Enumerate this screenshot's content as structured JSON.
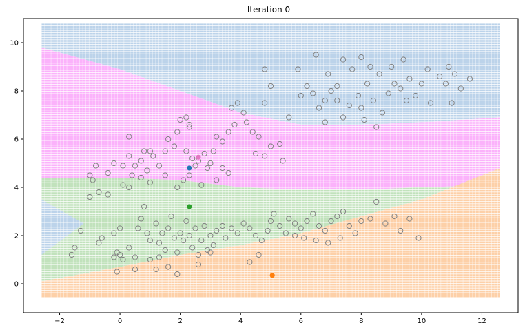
{
  "chart_data": {
    "type": "scatter",
    "title": "Iteration 0",
    "xlabel": "",
    "ylabel": "",
    "xlim": [
      -3.2,
      13.2
    ],
    "ylim": [
      -1.2,
      11.0
    ],
    "xticks": [
      -2,
      0,
      2,
      4,
      6,
      8,
      10,
      12
    ],
    "yticks": [
      0,
      2,
      4,
      6,
      8,
      10
    ],
    "grid": false,
    "legend": "none",
    "region_extent": {
      "x": [
        -2.6,
        12.6
      ],
      "y": [
        -0.6,
        10.8
      ]
    },
    "regions": [
      {
        "name": "blue",
        "color": "#bcd3ea"
      },
      {
        "name": "magenta",
        "color": "#fbb2fb"
      },
      {
        "name": "green",
        "color": "#c1e2bc"
      },
      {
        "name": "orange",
        "color": "#fdd0a8"
      }
    ],
    "boundaries": {
      "x": [
        -2.6,
        0,
        2,
        4,
        6,
        8,
        10,
        12.6
      ],
      "blue_magenta": [
        9.8,
        8.9,
        8.0,
        7.1,
        6.6,
        6.6,
        6.7,
        6.9
      ],
      "magenta_green": [
        4.4,
        4.4,
        4.3,
        4.0,
        3.9,
        3.9,
        4.0,
        4.1
      ],
      "green_orange": [
        0.1,
        0.7,
        1.2,
        1.6,
        2.1,
        2.8,
        3.5,
        4.8
      ],
      "left_blue_wedge": {
        "x": [
          -2.6,
          -1.2,
          -2.6
        ],
        "y": [
          1.2,
          2.5,
          3.5
        ]
      }
    },
    "centroids": [
      {
        "x": 2.3,
        "y": 4.8,
        "color": "#1f77b4"
      },
      {
        "x": 2.6,
        "y": 5.25,
        "color": "#e377c2"
      },
      {
        "x": 2.3,
        "y": 3.2,
        "color": "#2ca02c"
      },
      {
        "x": 5.05,
        "y": 0.35,
        "color": "#ff7f0e"
      }
    ],
    "point_color": "#808080",
    "points": [
      [
        -1.6,
        1.2
      ],
      [
        -1.5,
        1.5
      ],
      [
        -1.3,
        2.2
      ],
      [
        -1.0,
        4.5
      ],
      [
        -0.8,
        4.9
      ],
      [
        -0.9,
        4.3
      ],
      [
        -1.0,
        3.6
      ],
      [
        -0.7,
        3.8
      ],
      [
        -0.4,
        3.7
      ],
      [
        -0.4,
        4.6
      ],
      [
        -0.2,
        5.0
      ],
      [
        0.1,
        4.1
      ],
      [
        -0.7,
        1.7
      ],
      [
        -0.6,
        1.9
      ],
      [
        -0.2,
        1.1
      ],
      [
        0.0,
        1.2
      ],
      [
        0.1,
        1.0
      ],
      [
        -0.1,
        1.3
      ],
      [
        -0.2,
        2.1
      ],
      [
        0.0,
        2.3
      ],
      [
        0.3,
        1.5
      ],
      [
        0.5,
        1.1
      ],
      [
        0.3,
        4.0
      ],
      [
        0.4,
        4.5
      ],
      [
        0.5,
        4.9
      ],
      [
        0.3,
        5.3
      ],
      [
        0.3,
        6.1
      ],
      [
        0.7,
        4.4
      ],
      [
        0.7,
        5.1
      ],
      [
        0.8,
        5.5
      ],
      [
        0.9,
        4.7
      ],
      [
        1.0,
        4.2
      ],
      [
        1.1,
        5.3
      ],
      [
        1.3,
        4.9
      ],
      [
        1.0,
        5.5
      ],
      [
        1.5,
        4.5
      ],
      [
        1.5,
        5.5
      ],
      [
        1.6,
        6.0
      ],
      [
        1.8,
        5.7
      ],
      [
        1.9,
        6.3
      ],
      [
        2.0,
        6.8
      ],
      [
        2.2,
        6.9
      ],
      [
        2.3,
        6.6
      ],
      [
        2.3,
        6.5
      ],
      [
        2.2,
        5.5
      ],
      [
        2.4,
        5.2
      ],
      [
        2.5,
        4.9
      ],
      [
        2.6,
        5.1
      ],
      [
        2.8,
        5.4
      ],
      [
        2.9,
        4.8
      ],
      [
        3.0,
        5.0
      ],
      [
        3.1,
        5.5
      ],
      [
        3.2,
        6.1
      ],
      [
        3.4,
        5.9
      ],
      [
        3.6,
        6.3
      ],
      [
        3.8,
        6.6
      ],
      [
        3.7,
        7.3
      ],
      [
        3.9,
        7.5
      ],
      [
        4.1,
        7.1
      ],
      [
        4.2,
        6.7
      ],
      [
        4.4,
        6.3
      ],
      [
        4.6,
        6.1
      ],
      [
        4.5,
        5.4
      ],
      [
        4.8,
        5.3
      ],
      [
        5.0,
        5.7
      ],
      [
        5.3,
        5.8
      ],
      [
        5.4,
        5.1
      ],
      [
        3.4,
        4.8
      ],
      [
        3.6,
        4.6
      ],
      [
        3.2,
        4.3
      ],
      [
        2.7,
        4.1
      ],
      [
        2.3,
        4.5
      ],
      [
        2.1,
        4.3
      ],
      [
        1.9,
        4.0
      ],
      [
        0.1,
        4.9
      ],
      [
        0.6,
        2.3
      ],
      [
        0.7,
        2.7
      ],
      [
        0.8,
        3.2
      ],
      [
        0.9,
        2.1
      ],
      [
        1.0,
        1.8
      ],
      [
        1.2,
        2.5
      ],
      [
        1.3,
        1.7
      ],
      [
        1.4,
        2.1
      ],
      [
        1.5,
        1.4
      ],
      [
        1.6,
        2.3
      ],
      [
        1.7,
        2.8
      ],
      [
        1.8,
        1.9
      ],
      [
        1.9,
        1.3
      ],
      [
        2.0,
        2.1
      ],
      [
        2.1,
        1.8
      ],
      [
        2.2,
        2.6
      ],
      [
        2.3,
        2.0
      ],
      [
        2.4,
        1.5
      ],
      [
        2.5,
        2.3
      ],
      [
        2.6,
        1.2
      ],
      [
        2.7,
        1.8
      ],
      [
        2.8,
        2.4
      ],
      [
        2.9,
        1.4
      ],
      [
        3.0,
        2.0
      ],
      [
        3.1,
        1.6
      ],
      [
        3.2,
        2.2
      ],
      [
        3.4,
        2.4
      ],
      [
        3.5,
        1.9
      ],
      [
        3.7,
        2.3
      ],
      [
        3.9,
        2.1
      ],
      [
        4.1,
        2.5
      ],
      [
        4.3,
        2.3
      ],
      [
        4.5,
        2.0
      ],
      [
        4.7,
        1.8
      ],
      [
        4.9,
        2.2
      ],
      [
        5.0,
        2.6
      ],
      [
        5.1,
        2.9
      ],
      [
        5.3,
        2.4
      ],
      [
        5.5,
        2.1
      ],
      [
        5.6,
        2.7
      ],
      [
        5.8,
        2.5
      ],
      [
        6.0,
        2.3
      ],
      [
        6.2,
        2.6
      ],
      [
        6.4,
        2.9
      ],
      [
        6.6,
        2.4
      ],
      [
        6.8,
        2.2
      ],
      [
        7.0,
        2.6
      ],
      [
        7.2,
        2.8
      ],
      [
        7.4,
        3.0
      ],
      [
        7.6,
        2.4
      ],
      [
        7.8,
        2.1
      ],
      [
        8.0,
        2.6
      ],
      [
        8.3,
        2.7
      ],
      [
        8.5,
        3.4
      ],
      [
        8.8,
        2.5
      ],
      [
        9.1,
        2.8
      ],
      [
        9.3,
        2.2
      ],
      [
        9.6,
        2.7
      ],
      [
        9.9,
        1.9
      ],
      [
        6.1,
        1.9
      ],
      [
        6.5,
        1.8
      ],
      [
        6.9,
        1.7
      ],
      [
        7.3,
        1.9
      ],
      [
        5.8,
        2.0
      ],
      [
        4.6,
        1.2
      ],
      [
        4.3,
        0.9
      ],
      [
        3.0,
        1.3
      ],
      [
        2.6,
        0.8
      ],
      [
        1.3,
        1.1
      ],
      [
        1.6,
        0.7
      ],
      [
        1.9,
        0.4
      ],
      [
        0.5,
        0.6
      ],
      [
        -0.1,
        0.5
      ],
      [
        1.0,
        1.0
      ],
      [
        1.2,
        0.6
      ],
      [
        4.8,
        8.9
      ],
      [
        5.0,
        8.2
      ],
      [
        4.8,
        7.5
      ],
      [
        5.6,
        6.9
      ],
      [
        5.9,
        8.9
      ],
      [
        6.0,
        7.8
      ],
      [
        6.2,
        8.2
      ],
      [
        6.4,
        7.9
      ],
      [
        6.6,
        7.3
      ],
      [
        6.8,
        7.6
      ],
      [
        7.0,
        8.0
      ],
      [
        6.5,
        9.5
      ],
      [
        6.9,
        8.7
      ],
      [
        7.2,
        8.2
      ],
      [
        7.4,
        9.3
      ],
      [
        7.6,
        7.4
      ],
      [
        7.7,
        8.9
      ],
      [
        7.9,
        7.8
      ],
      [
        8.0,
        9.4
      ],
      [
        8.2,
        8.3
      ],
      [
        8.3,
        9.0
      ],
      [
        8.4,
        7.6
      ],
      [
        8.6,
        8.7
      ],
      [
        8.7,
        7.1
      ],
      [
        8.9,
        7.9
      ],
      [
        9.0,
        9.0
      ],
      [
        9.1,
        8.3
      ],
      [
        9.3,
        8.1
      ],
      [
        9.4,
        9.3
      ],
      [
        9.5,
        7.6
      ],
      [
        9.6,
        8.5
      ],
      [
        9.8,
        7.8
      ],
      [
        10.0,
        8.3
      ],
      [
        10.2,
        8.9
      ],
      [
        10.3,
        7.5
      ],
      [
        10.6,
        8.6
      ],
      [
        10.8,
        8.3
      ],
      [
        10.9,
        9.0
      ],
      [
        11.1,
        8.7
      ],
      [
        11.3,
        8.1
      ],
      [
        11.6,
        8.5
      ],
      [
        11.0,
        7.5
      ],
      [
        8.0,
        7.3
      ],
      [
        8.5,
        6.5
      ],
      [
        8.1,
        6.8
      ],
      [
        7.4,
        6.9
      ],
      [
        6.8,
        6.7
      ],
      [
        7.2,
        7.6
      ]
    ]
  }
}
